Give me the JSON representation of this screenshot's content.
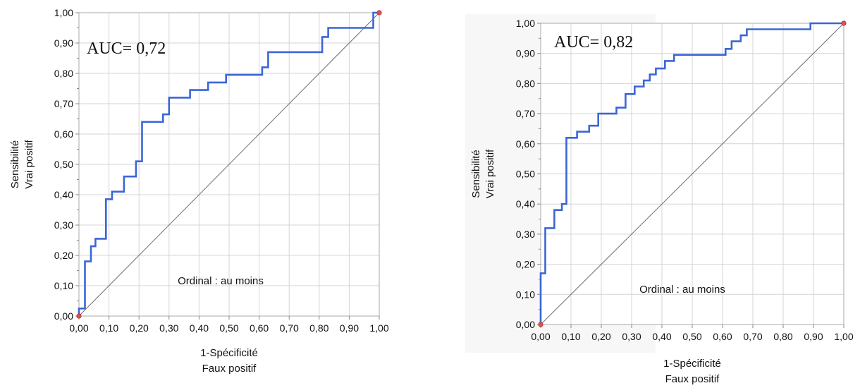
{
  "chart_data": [
    {
      "type": "line",
      "annotation": "AUC= 0,72",
      "note": "Ordinal : au moins",
      "xlabel": [
        "1-Spécificité",
        "Faux positif"
      ],
      "ylabel": [
        "Sensibilité",
        "Vrai positif"
      ],
      "xlim": [
        0,
        1
      ],
      "ylim": [
        0,
        1
      ],
      "grid": true,
      "xticks": [
        "0,00",
        "0,10",
        "0,20",
        "0,30",
        "0,40",
        "0,50",
        "0,60",
        "0,70",
        "0,80",
        "0,90",
        "1,00"
      ],
      "yticks": [
        "0,00",
        "0,10",
        "0,20",
        "0,30",
        "0,40",
        "0,50",
        "0,60",
        "0,70",
        "0,80",
        "0,90",
        "1,00"
      ],
      "series": [
        {
          "color": "#3c66d6",
          "x": [
            0,
            0,
            0.02,
            0.02,
            0.04,
            0.04,
            0.055,
            0.055,
            0.09,
            0.09,
            0.11,
            0.11,
            0.15,
            0.15,
            0.19,
            0.19,
            0.21,
            0.21,
            0.28,
            0.28,
            0.3,
            0.3,
            0.37,
            0.37,
            0.43,
            0.43,
            0.49,
            0.49,
            0.61,
            0.61,
            0.63,
            0.63,
            0.81,
            0.81,
            0.83,
            0.83,
            0.98,
            0.98,
            1.0
          ],
          "y": [
            0,
            0.025,
            0.025,
            0.18,
            0.18,
            0.23,
            0.23,
            0.255,
            0.255,
            0.385,
            0.385,
            0.41,
            0.41,
            0.46,
            0.46,
            0.51,
            0.51,
            0.64,
            0.64,
            0.665,
            0.665,
            0.72,
            0.72,
            0.745,
            0.745,
            0.77,
            0.77,
            0.795,
            0.795,
            0.82,
            0.82,
            0.87,
            0.87,
            0.92,
            0.92,
            0.95,
            0.95,
            1.0,
            1.0
          ]
        },
        {
          "color": "#6e6e6e",
          "x": [
            0,
            1
          ],
          "y": [
            0,
            1
          ]
        }
      ]
    },
    {
      "type": "line",
      "annotation": "AUC= 0,82",
      "note": "Ordinal : au moins",
      "xlabel": [
        "1-Spécificité",
        "Faux positif"
      ],
      "ylabel": [
        "Sensibilité",
        "Vrai positif"
      ],
      "xlim": [
        0,
        1
      ],
      "ylim": [
        0,
        1
      ],
      "grid": true,
      "xticks": [
        "0,00",
        "0,10",
        "0,20",
        "0,30",
        "0,40",
        "0,50",
        "0,60",
        "0,70",
        "0,80",
        "0,90",
        "1,00"
      ],
      "yticks": [
        "0,00",
        "0,10",
        "0,20",
        "0,30",
        "0,40",
        "0,50",
        "0,60",
        "0,70",
        "0,80",
        "0,90",
        "1,00"
      ],
      "series": [
        {
          "color": "#3c66d6",
          "x": [
            0,
            0,
            0.015,
            0.015,
            0.045,
            0.045,
            0.07,
            0.07,
            0.085,
            0.085,
            0.12,
            0.12,
            0.16,
            0.16,
            0.19,
            0.19,
            0.25,
            0.25,
            0.28,
            0.28,
            0.31,
            0.31,
            0.34,
            0.34,
            0.36,
            0.36,
            0.38,
            0.38,
            0.41,
            0.41,
            0.44,
            0.44,
            0.61,
            0.61,
            0.63,
            0.63,
            0.66,
            0.66,
            0.68,
            0.68,
            0.89,
            0.89,
            1.0
          ],
          "y": [
            0,
            0.17,
            0.17,
            0.32,
            0.32,
            0.38,
            0.38,
            0.4,
            0.4,
            0.62,
            0.62,
            0.64,
            0.64,
            0.66,
            0.66,
            0.7,
            0.7,
            0.72,
            0.72,
            0.765,
            0.765,
            0.79,
            0.79,
            0.81,
            0.81,
            0.83,
            0.83,
            0.85,
            0.85,
            0.875,
            0.875,
            0.895,
            0.895,
            0.915,
            0.915,
            0.94,
            0.94,
            0.96,
            0.96,
            0.98,
            0.98,
            1.0,
            1.0
          ]
        },
        {
          "color": "#6e6e6e",
          "x": [
            0,
            1
          ],
          "y": [
            0,
            1
          ]
        }
      ]
    }
  ]
}
